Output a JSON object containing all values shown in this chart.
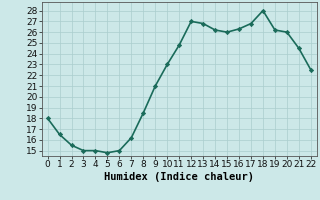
{
  "x": [
    0,
    1,
    2,
    3,
    4,
    5,
    6,
    7,
    8,
    9,
    10,
    11,
    12,
    13,
    14,
    15,
    16,
    17,
    18,
    19,
    20,
    21,
    22
  ],
  "y": [
    18,
    16.5,
    15.5,
    15,
    15,
    14.8,
    15,
    16.2,
    18.5,
    21,
    23,
    24.8,
    27,
    26.8,
    26.2,
    26,
    26.3,
    26.8,
    28,
    26.2,
    26,
    24.5,
    22.5
  ],
  "line_color": "#1a6b5a",
  "marker": "D",
  "marker_size": 2.2,
  "bg_color": "#cce8e8",
  "grid_color": "#aacece",
  "xlabel": "Humidex (Indice chaleur)",
  "ylim": [
    14.5,
    28.8
  ],
  "xlim": [
    -0.5,
    22.5
  ],
  "yticks": [
    15,
    16,
    17,
    18,
    19,
    20,
    21,
    22,
    23,
    24,
    25,
    26,
    27,
    28
  ],
  "xticks": [
    0,
    1,
    2,
    3,
    4,
    5,
    6,
    7,
    8,
    9,
    10,
    11,
    12,
    13,
    14,
    15,
    16,
    17,
    18,
    19,
    20,
    21,
    22
  ],
  "xlabel_fontsize": 7.5,
  "tick_fontsize": 6.5,
  "linewidth": 1.2
}
